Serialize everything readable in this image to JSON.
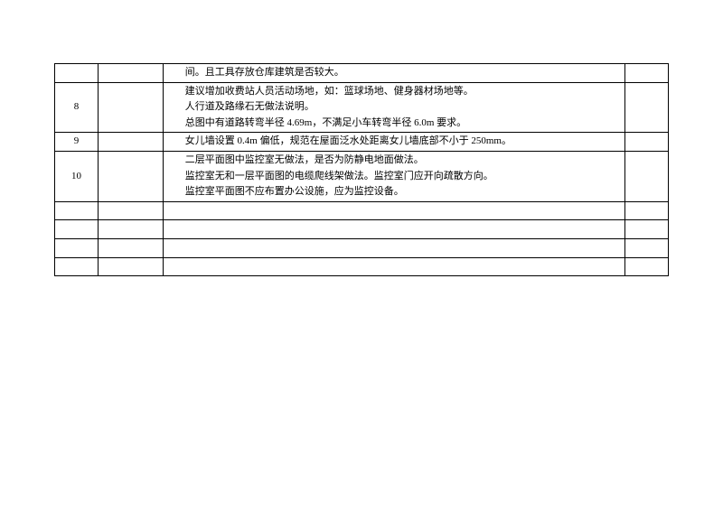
{
  "table": {
    "rows": [
      {
        "seq": "",
        "col2": "",
        "content_lines": [
          "间。且工具存放仓库建筑是否较大。"
        ],
        "col4": ""
      },
      {
        "seq": "8",
        "col2": "",
        "content_lines": [
          "建议增加收费站人员活动场地，如：篮球场地、健身器材场地等。",
          "人行道及路缘石无做法说明。",
          "总图中有道路转弯半径 4.69m，不满足小车转弯半径 6.0m 要求。"
        ],
        "col4": ""
      },
      {
        "seq": "9",
        "col2": "",
        "content_lines": [
          "女儿墙设置 0.4m 偏低，规范在屋面泛水处距离女儿墙底部不小于 250mm。"
        ],
        "col4": ""
      },
      {
        "seq": "10",
        "col2": "",
        "content_lines": [
          "二层平面图中监控室无做法，是否为防静电地面做法。",
          "监控室无和一层平面图的电缆爬线架做法。监控室门应开向疏散方向。",
          "监控室平面图不应布置办公设施，应为监控设备。"
        ],
        "col4": ""
      },
      {
        "seq": "",
        "col2": "",
        "content_lines": [
          ""
        ],
        "col4": ""
      },
      {
        "seq": "",
        "col2": "",
        "content_lines": [
          ""
        ],
        "col4": ""
      },
      {
        "seq": "",
        "col2": "",
        "content_lines": [
          ""
        ],
        "col4": ""
      },
      {
        "seq": "",
        "col2": "",
        "content_lines": [
          ""
        ],
        "col4": ""
      }
    ]
  },
  "style": {
    "background_color": "#ffffff",
    "border_color": "#000000",
    "font_size_pt": 11,
    "font_family": "SimSun"
  }
}
